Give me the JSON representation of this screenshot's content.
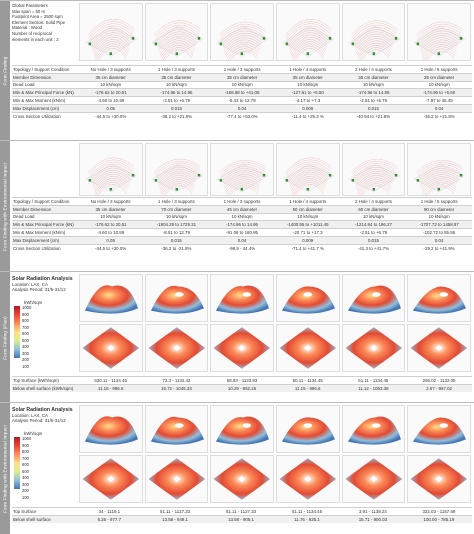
{
  "params": {
    "title": "Global Parameters",
    "lines": [
      "Max span = 50 m",
      "Footprint Area = 2500 sqm",
      "Element Section: Solid Pipe",
      "Material : Wood",
      "Number of reciprocal",
      "elements in each unit : 2"
    ]
  },
  "sidebars": [
    "Form Finding",
    "Form Finding with Environmental Impact",
    "Form Finding (Plan)",
    "Form Finding with Environmental Impact"
  ],
  "table1": {
    "rows": [
      [
        "Topology / Support Condition",
        "No Hole / 3 supports",
        "1 Hole / 3 supports",
        "1 Hole / 3 supports",
        "1 Hole / 4 supports",
        "2 Hole / 4 supports",
        "1 Hole / 5 supports"
      ],
      [
        "Member Dimension",
        "35 cm diameter",
        "35 cm diameter",
        "35 cm diameter",
        "35 cm diameter",
        "35 cm diameter",
        "35 cm diameter"
      ],
      [
        "Dead Load",
        "10 kN/sqm",
        "10 kN/sqm",
        "10 kN/sqm",
        "10 kN/sqm",
        "10 kN/sqm",
        "10 kN/sqm"
      ],
      [
        "Min & Max Principal Force (kN)",
        "-176.62 to 20.51",
        "-174.96 to 14.95",
        "-166.88 to +41.08",
        "-127.61 to +6.50",
        "-174.96 to 14.95",
        "-174.96 to +6.50"
      ],
      [
        "Min & Max Moment (kN/m)",
        "-4.60 to 10.59",
        "-2.51 to +6.79",
        "-5.42 to 12.78",
        "-4.17 to +7.3",
        "-2.51 to +6.79",
        "-7.97 to 45.45"
      ],
      [
        "Max Displacement (cm)",
        "0.05",
        "0.015",
        "0.04",
        "0.009",
        "0.015",
        "0.04"
      ],
      [
        "Cross Section Utilization",
        "-44.5 to +30.0%",
        "-36.2 to +21.8%",
        "-77.4 to +53.0%",
        "-11.4 to +25.3 %",
        "-40.94 to +21.8%",
        "-36.2 to +21.8%"
      ]
    ]
  },
  "table2": {
    "rows": [
      [
        "Topology / Support Condition",
        "No Hole / 3 supports",
        "1 Hole / 3 supports",
        "1 Hole / 3 supports",
        "1 Hole / 4 supports",
        "2 Hole / 4 supports",
        "1 Hole / 5 supports"
      ],
      [
        "Member Dimension",
        "35 cm diameter",
        "70 cm diameter",
        "45 cm diameter",
        "50 cm diameter",
        "60 cm diameter",
        "90 cm diameter"
      ],
      [
        "Dead Load",
        "10 kN/sqm",
        "10 kN/sqm",
        "10 kN/sqm",
        "10 kN/sqm",
        "10 kN/sqm",
        "10 kN/sqm"
      ],
      [
        "Min & Max Principal Force (kN)",
        "-176.62 to 20.51",
        "-1904.29 to 1729.31",
        "-174.96 to 14.95",
        "-1400.55 to +1011.45",
        "-1214.84 to 196.27",
        "-1707.72 to 1458.97"
      ],
      [
        "Min & Max Moment (kN/m)",
        "-4.60 to 10.59",
        "-8.51 to 12.79",
        "-91.06 to 160.95",
        "-20.71 to +17.3",
        "-2.51 to +6.79",
        "-102.72 to 55.55"
      ],
      [
        "Max Displacement (cm)",
        "0.05",
        "0.015",
        "0.04",
        "0.009",
        "0.015",
        "0.04"
      ],
      [
        "Cross Section Utilization",
        "-44.5 to +30.0%",
        "-36.2 to -21.8%",
        "-98.9 - 44.4%",
        "-71.4 to +41.7 %",
        "-41.3 to +41.7%",
        "-29.2 to +41.9%"
      ]
    ]
  },
  "solar1": {
    "title": "Solar Radiation Analysis",
    "location": "Location: LAX, CA",
    "period": "Analysis Period: 31/5-31/12",
    "unit": "kWh/sqm",
    "ticks": [
      "1000",
      "900",
      "800",
      "700",
      "600",
      "500",
      "400",
      "300",
      "200",
      "100"
    ],
    "rows": [
      [
        "Top Surface (kWh/sqm)",
        "630.11 - 1134.45",
        "73.3 - 1132.42",
        "68.93 - 1133.93",
        "60.11 - 1134.45",
        "61.11 - 1134.45",
        "265.02 - 1132.05"
      ],
      [
        "Below shell surface (kWh/sqm)",
        "11.15 - 996.6",
        "15.72 - 1045.33",
        "10.29 - 952.25",
        "11.15 - 996.6",
        "11.12 - 1053.38",
        "2.67 - 967.02"
      ]
    ]
  },
  "solar2": {
    "title": "Solar Radiation Analysis",
    "location": "Location: LAX, CA",
    "period": "Analysis Period: 31/5-31/12",
    "unit": "kWh/sqm",
    "ticks": [
      "1000",
      "900",
      "800",
      "700",
      "600",
      "500",
      "400",
      "300",
      "200",
      "100"
    ],
    "rows": [
      [
        "Top Surface",
        "34 - 1119.1",
        "51.11 - 1127.33",
        "51.11 - 1127.33",
        "51.11 - 1134.45",
        "3.91 - 1138.24",
        "332.03 - 1157.69"
      ],
      [
        "Below shell surface",
        "6.26 - 977.7",
        "13.58 - 949.1",
        "13.58 - 905.1",
        "11.76 - 925.1",
        "15.71 - 900.03",
        "100.00 - 785.19"
      ]
    ]
  }
}
